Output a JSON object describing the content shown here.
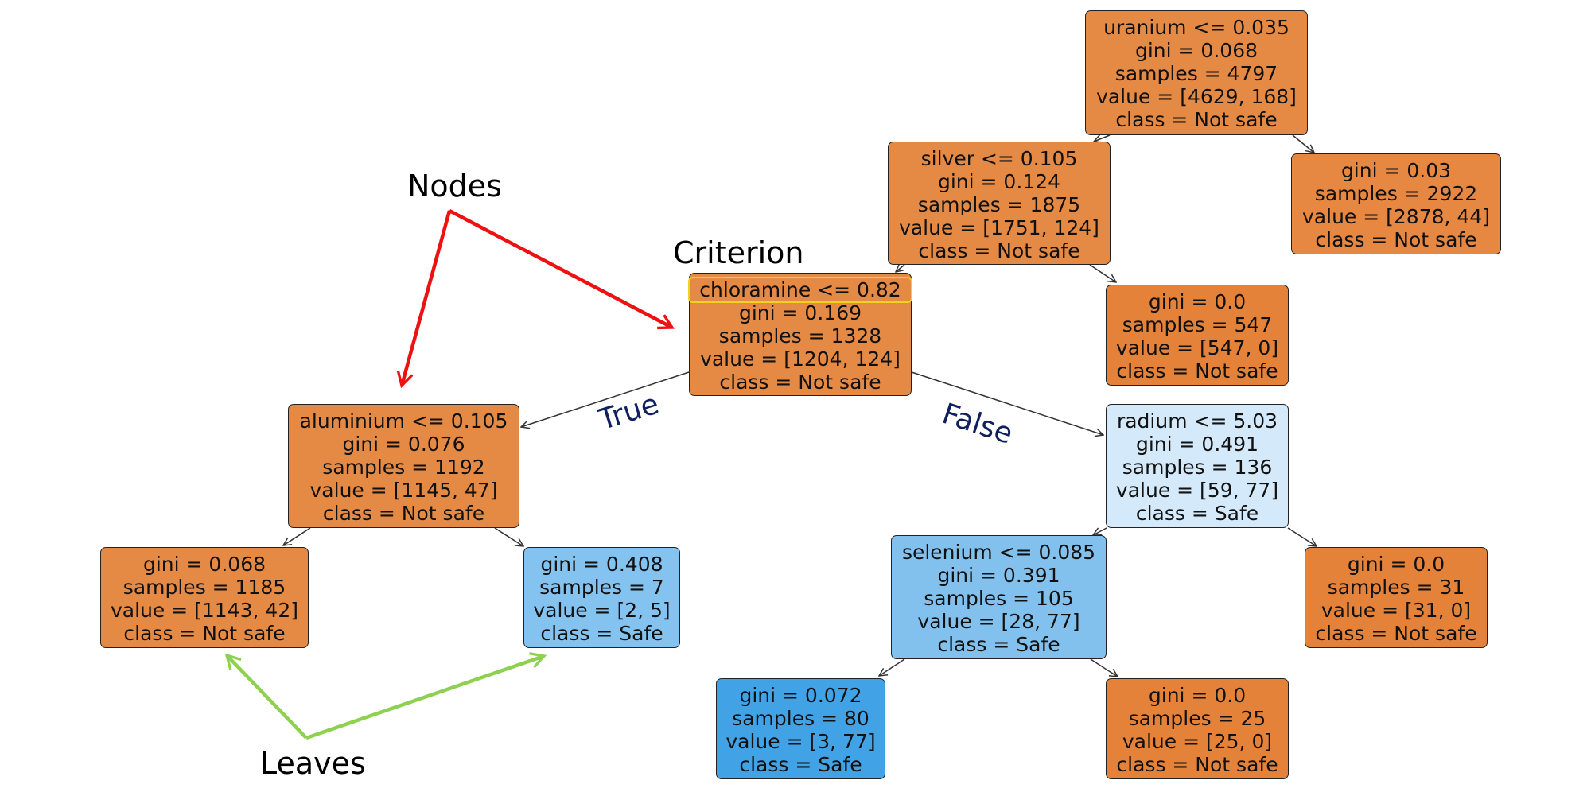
{
  "annotations": {
    "nodes": "Nodes",
    "criterion": "Criterion",
    "leaves": "Leaves"
  },
  "edge_labels": {
    "true_label": "True",
    "false_label": "False"
  },
  "colors": {
    "node_arrows": "#ee1111",
    "leaf_arrows": "#8ed150",
    "criterion_highlight": "#f2d21b",
    "edge_label_text": "#10205e"
  },
  "tree": {
    "n_uranium": [
      "uranium <= 0.035",
      "gini = 0.068",
      "samples = 4797",
      "value = [4629, 168]",
      "class = Not safe"
    ],
    "n_silver": [
      "silver <= 0.105",
      "gini = 0.124",
      "samples = 1875",
      "value = [1751, 124]",
      "class = Not safe"
    ],
    "n_leaf_2922": [
      "gini = 0.03",
      "samples = 2922",
      "value = [2878, 44]",
      "class = Not safe"
    ],
    "n_chloramine": [
      "chloramine <= 0.82",
      "gini = 0.169",
      "samples = 1328",
      "value = [1204, 124]",
      "class = Not safe"
    ],
    "n_leaf_547": [
      "gini = 0.0",
      "samples = 547",
      "value = [547, 0]",
      "class = Not safe"
    ],
    "n_aluminium": [
      "aluminium <= 0.105",
      "gini = 0.076",
      "samples = 1192",
      "value = [1145, 47]",
      "class = Not safe"
    ],
    "n_radium": [
      "radium <= 5.03",
      "gini = 0.491",
      "samples = 136",
      "value = [59, 77]",
      "class = Safe"
    ],
    "n_leaf_1185": [
      "gini = 0.068",
      "samples = 1185",
      "value = [1143, 42]",
      "class = Not safe"
    ],
    "n_leaf_7": [
      "gini = 0.408",
      "samples = 7",
      "value = [2, 5]",
      "class = Safe"
    ],
    "n_selenium": [
      "selenium <= 0.085",
      "gini = 0.391",
      "samples = 105",
      "value = [28, 77]",
      "class = Safe"
    ],
    "n_leaf_31": [
      "gini = 0.0",
      "samples = 31",
      "value = [31, 0]",
      "class = Not safe"
    ],
    "n_leaf_80": [
      "gini = 0.072",
      "samples = 80",
      "value = [3, 77]",
      "class = Safe"
    ],
    "n_leaf_25": [
      "gini = 0.0",
      "samples = 25",
      "value = [25, 0]",
      "class = Not safe"
    ]
  }
}
